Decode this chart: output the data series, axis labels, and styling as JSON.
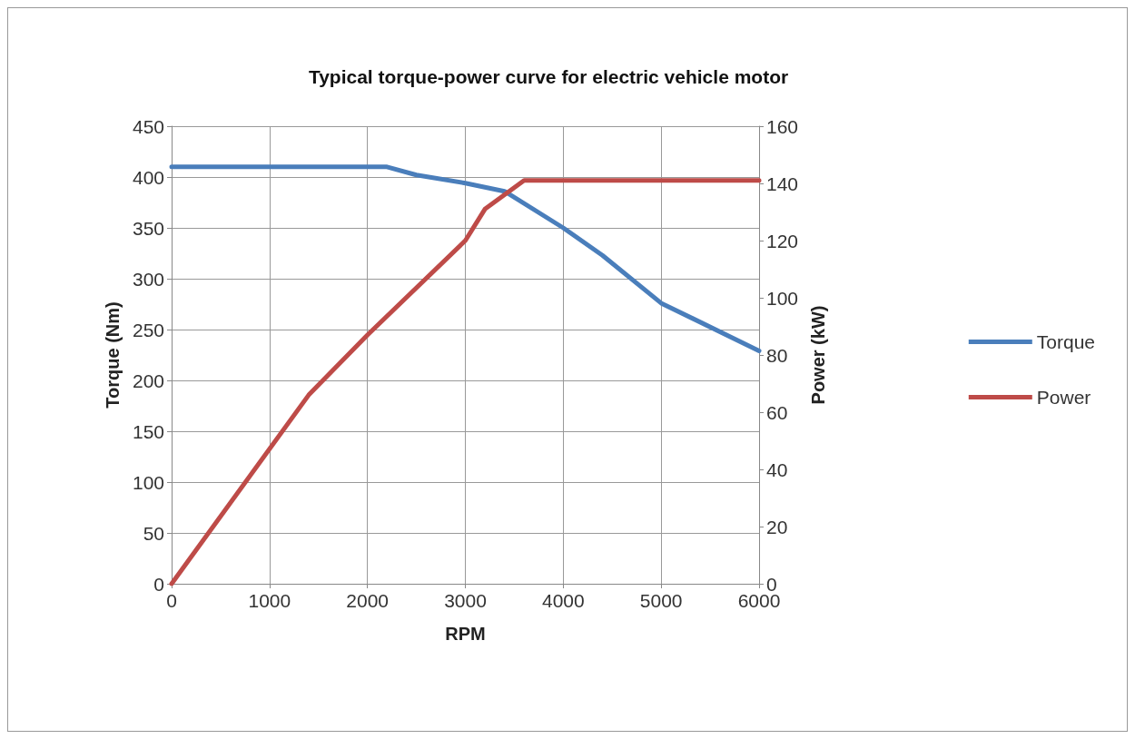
{
  "chart_data": {
    "type": "line",
    "title": "Typical torque-power curve for electric vehicle motor",
    "xlabel": "RPM",
    "ylabel": "Torque (Nm)",
    "y2label": "Power (kW)",
    "xlim": [
      0,
      6000
    ],
    "xticks": [
      0,
      1000,
      2000,
      3000,
      4000,
      5000,
      6000
    ],
    "ylim": [
      0,
      450
    ],
    "yticks": [
      0,
      50,
      100,
      150,
      200,
      250,
      300,
      350,
      400,
      450
    ],
    "y2lim": [
      0,
      160
    ],
    "y2ticks": [
      0,
      20,
      40,
      60,
      80,
      100,
      120,
      140,
      160
    ],
    "grid": true,
    "legend": "right",
    "marker": "none",
    "line_style": "solid",
    "series": [
      {
        "name": "Torque",
        "color": "#4a7ebb",
        "x": [
          0,
          1000,
          2000,
          2200,
          2500,
          3000,
          3400,
          4000,
          4400,
          5000,
          6000
        ],
        "values": [
          410,
          410,
          410,
          410,
          402,
          394,
          386,
          350,
          323,
          276,
          229
        ]
      },
      {
        "name": "Power",
        "color": "#be4b48",
        "axis": "y2",
        "x": [
          0,
          1400,
          2000,
          3000,
          3200,
          3600,
          4000,
          5000,
          6000
        ],
        "values": [
          0,
          66,
          87,
          120,
          131,
          141,
          141,
          141,
          141
        ]
      }
    ]
  }
}
